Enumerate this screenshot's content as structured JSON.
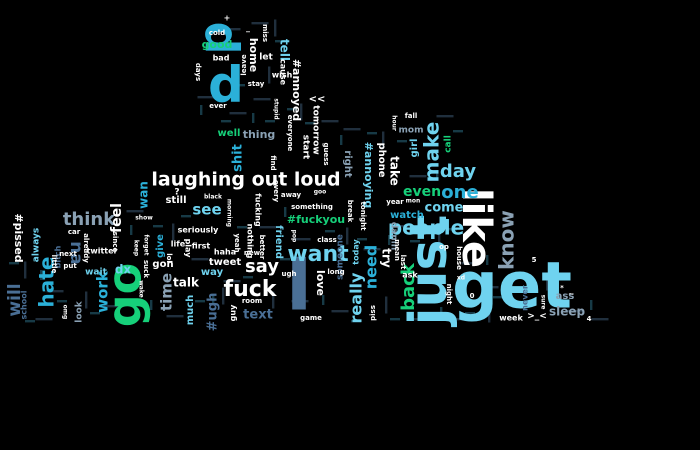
{
  "palette": {
    "background": "#000000",
    "white": "#ffffff",
    "cyan": "#2bb0d8",
    "light_blue": "#6fd3ef",
    "steel": "#4a6f95",
    "green": "#16d07a",
    "slate": "#8aa1b4"
  },
  "words": [
    {
      "text": "get",
      "color": "light_blue"
    },
    {
      "text": "just",
      "color": "light_blue"
    },
    {
      "text": "like",
      "color": "white"
    },
    {
      "text": "go",
      "color": "green"
    },
    {
      "text": "I",
      "color": "steel"
    },
    {
      "text": "p",
      "color": "cyan"
    },
    {
      "text": "d",
      "color": "cyan"
    },
    {
      "text": "laughing out loud",
      "color": "white"
    },
    {
      "text": "people",
      "color": "light_blue"
    },
    {
      "text": "fuck",
      "color": "white"
    },
    {
      "text": "want",
      "color": "light_blue"
    },
    {
      "text": "hate",
      "color": "cyan"
    },
    {
      "text": "make",
      "color": "light_blue"
    },
    {
      "text": "know",
      "color": "slate"
    },
    {
      "text": "say",
      "color": "white"
    },
    {
      "text": "day",
      "color": "light_blue"
    },
    {
      "text": "one",
      "color": "cyan"
    },
    {
      "text": "really",
      "color": "light_blue"
    },
    {
      "text": "back",
      "color": "green"
    },
    {
      "text": "need",
      "color": "cyan"
    },
    {
      "text": "think",
      "color": "slate"
    },
    {
      "text": "see",
      "color": "light_blue"
    },
    {
      "text": "work",
      "color": "cyan"
    },
    {
      "text": "will",
      "color": "steel"
    },
    {
      "text": "time",
      "color": "slate"
    },
    {
      "text": "na",
      "color": "steel"
    },
    {
      "text": "come",
      "color": "light_blue"
    },
    {
      "text": "even",
      "color": "green"
    },
    {
      "text": "talk",
      "color": "white"
    },
    {
      "text": "feel",
      "color": "white"
    },
    {
      "text": "wan",
      "color": "cyan"
    },
    {
      "text": "text",
      "color": "steel"
    },
    {
      "text": "#ugh",
      "color": "steel"
    },
    {
      "text": "shit",
      "color": "cyan"
    },
    {
      "text": "tell",
      "color": "light_blue"
    },
    {
      "text": "good",
      "color": "green"
    },
    {
      "text": "home",
      "color": "white"
    },
    {
      "text": "#annoyed",
      "color": "white"
    },
    {
      "text": "#annoying",
      "color": "light_blue"
    },
    {
      "text": "#fuckyou",
      "color": "green"
    },
    {
      "text": "#pissed",
      "color": "white"
    },
    {
      "text": "friend",
      "color": "light_blue"
    },
    {
      "text": "love",
      "color": "white"
    },
    {
      "text": "sleep",
      "color": "slate"
    },
    {
      "text": "ass",
      "color": "slate"
    },
    {
      "text": "watch",
      "color": "cyan"
    },
    {
      "text": "phone",
      "color": "white"
    },
    {
      "text": "take",
      "color": "white"
    },
    {
      "text": "damn",
      "color": "slate"
    },
    {
      "text": "girl",
      "color": "light_blue"
    },
    {
      "text": "mom",
      "color": "slate"
    },
    {
      "text": "call",
      "color": "green"
    },
    {
      "text": "tomorrow",
      "color": "white"
    },
    {
      "text": "start",
      "color": "white"
    },
    {
      "text": "right",
      "color": "slate"
    },
    {
      "text": "well",
      "color": "green"
    },
    {
      "text": "thing",
      "color": "slate"
    },
    {
      "text": "gon",
      "color": "white"
    },
    {
      "text": "give",
      "color": "cyan"
    },
    {
      "text": "still",
      "color": "white"
    },
    {
      "text": "much",
      "color": "light_blue"
    },
    {
      "text": "way",
      "color": "light_blue"
    },
    {
      "text": "tweet",
      "color": "white"
    },
    {
      "text": "dx",
      "color": "light_blue"
    },
    {
      "text": "wait",
      "color": "light_blue"
    },
    {
      "text": "look",
      "color": "slate"
    },
    {
      "text": "school",
      "color": "steel"
    },
    {
      "text": "always",
      "color": "light_blue"
    },
    {
      "text": "bitch",
      "color": "steel"
    },
    {
      "text": "twitter",
      "color": "white"
    },
    {
      "text": "someone",
      "color": "steel"
    },
    {
      "text": "today",
      "color": "light_blue"
    },
    {
      "text": "never",
      "color": "steel"
    },
    {
      "text": "week",
      "color": "white"
    },
    {
      "text": "guy",
      "color": "white"
    },
    {
      "text": "play",
      "color": "white"
    },
    {
      "text": "life",
      "color": "white"
    },
    {
      "text": "first",
      "color": "white"
    },
    {
      "text": "haha",
      "color": "white"
    },
    {
      "text": "seriously",
      "color": "white"
    },
    {
      "text": "nothing",
      "color": "white"
    },
    {
      "text": "fucking",
      "color": "white"
    },
    {
      "text": "every",
      "color": "white"
    },
    {
      "text": "away",
      "color": "white"
    },
    {
      "text": "something",
      "color": "white"
    },
    {
      "text": "class",
      "color": "white"
    },
    {
      "text": "long",
      "color": "white"
    },
    {
      "text": "bad",
      "color": "white"
    },
    {
      "text": "let",
      "color": "white"
    },
    {
      "text": "cause",
      "color": "white"
    },
    {
      "text": "wish",
      "color": "white"
    },
    {
      "text": "stay",
      "color": "white"
    },
    {
      "text": "cold",
      "color": "white"
    },
    {
      "text": "miss",
      "color": "white"
    },
    {
      "text": "ever",
      "color": "white"
    },
    {
      "text": "days",
      "color": "white"
    },
    {
      "text": "leave",
      "color": "white"
    },
    {
      "text": "everyone",
      "color": "white"
    },
    {
      "text": "guess",
      "color": "white"
    },
    {
      "text": "fall",
      "color": "white"
    },
    {
      "text": "year",
      "color": "white"
    },
    {
      "text": "tonight",
      "color": "white"
    },
    {
      "text": "break",
      "color": "white"
    },
    {
      "text": "mean",
      "color": "white"
    },
    {
      "text": "last",
      "color": "white"
    },
    {
      "text": "ask",
      "color": "white"
    },
    {
      "text": "house",
      "color": "white"
    },
    {
      "text": "night",
      "color": "white"
    },
    {
      "text": "piss",
      "color": "white"
    },
    {
      "text": "game",
      "color": "white"
    },
    {
      "text": "room",
      "color": "white"
    },
    {
      "text": "ugh",
      "color": "white"
    },
    {
      "text": "yeah",
      "color": "white"
    },
    {
      "text": "better",
      "color": "white"
    },
    {
      "text": "new",
      "color": "white"
    },
    {
      "text": "suck",
      "color": "white"
    },
    {
      "text": "forget",
      "color": "white"
    },
    {
      "text": "keep",
      "color": "white"
    },
    {
      "text": "show",
      "color": "white"
    },
    {
      "text": "wake",
      "color": "white"
    },
    {
      "text": "car",
      "color": "white"
    },
    {
      "text": "next",
      "color": "white"
    },
    {
      "text": "little",
      "color": "white"
    },
    {
      "text": "put",
      "color": "white"
    },
    {
      "text": "already",
      "color": "white"
    },
    {
      "text": "omg",
      "color": "white"
    },
    {
      "text": "since",
      "color": "white"
    },
    {
      "text": "lol",
      "color": "white"
    },
    {
      "text": "mon",
      "color": "white"
    },
    {
      "text": "goo",
      "color": "white"
    },
    {
      "text": "black",
      "color": "white"
    },
    {
      "text": "morning",
      "color": "white"
    },
    {
      "text": "pop",
      "color": "white"
    },
    {
      "text": "find",
      "color": "white"
    },
    {
      "text": "stupid",
      "color": "white"
    },
    {
      "text": "hour",
      "color": "white"
    },
    {
      "text": "try",
      "color": "white"
    },
    {
      "text": "op",
      "color": "white"
    },
    {
      "text": "sure",
      "color": "white"
    },
    {
      "text": "xd",
      "color": "white"
    },
    {
      "text": "<<",
      "color": "white"
    },
    {
      "text": ">_<",
      "color": "white"
    },
    {
      "text": "?",
      "color": "white"
    },
    {
      "text": "4",
      "color": "white"
    },
    {
      "text": "5",
      "color": "white"
    },
    {
      "text": "0",
      "color": "white"
    },
    {
      "text": "+",
      "color": "white"
    },
    {
      "text": "_",
      "color": "white"
    },
    {
      "text": "~",
      "color": "white"
    },
    {
      "text": "*",
      "color": "white"
    }
  ]
}
